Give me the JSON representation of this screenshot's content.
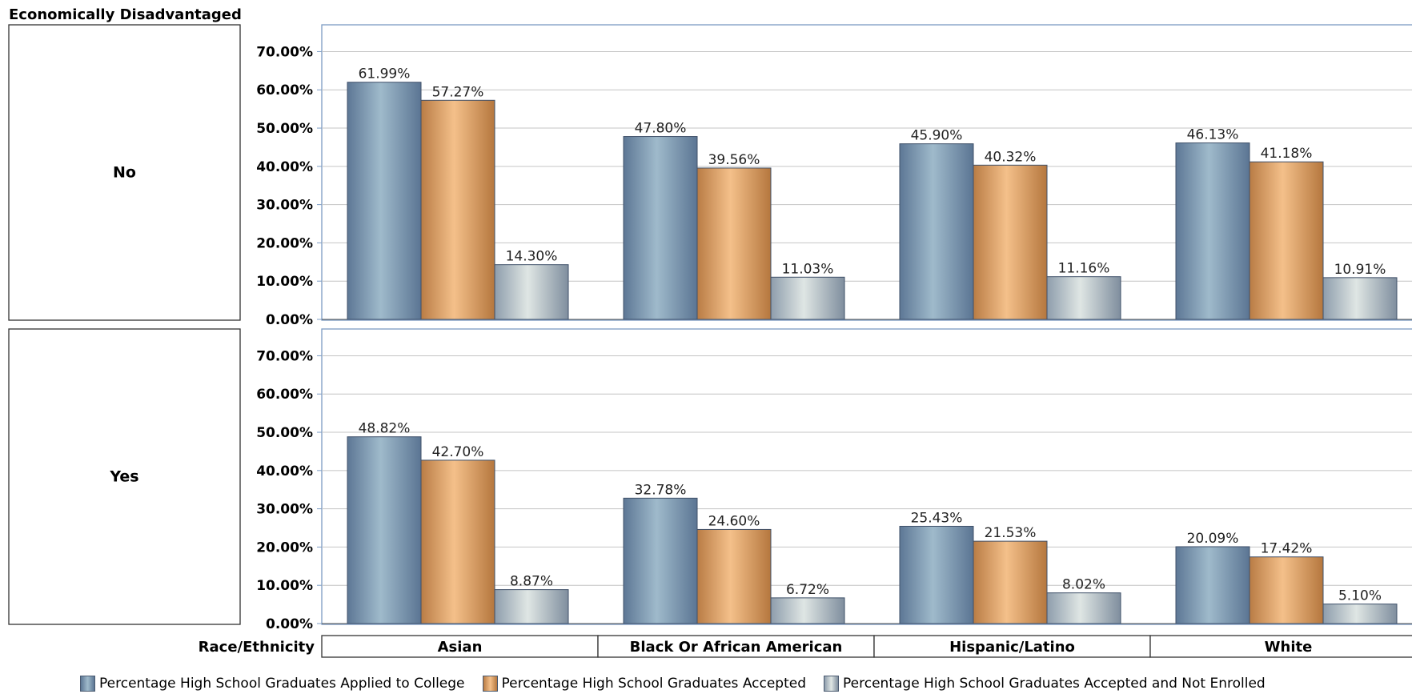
{
  "chart_data": {
    "type": "bar",
    "row_dimension_label": "Economically Disadvantaged",
    "x_dimension_label": "Race/Ethnicity",
    "categories": [
      "Asian",
      "Black Or African American",
      "Hispanic/Latino",
      "White"
    ],
    "y_ticks": [
      "0.00%",
      "10.00%",
      "20.00%",
      "30.00%",
      "40.00%",
      "50.00%",
      "60.00%",
      "70.00%"
    ],
    "ylim": [
      0,
      77
    ],
    "grid": true,
    "legend_position": "bottom",
    "series_names": [
      "Percentage High School Graduates Applied to College",
      "Percentage High School Graduates Accepted",
      "Percentage High School Graduates Accepted and Not Enrolled"
    ],
    "series_colors": [
      "#7a97b5",
      "#e3a46a",
      "#b7c2ca"
    ],
    "panels": [
      {
        "row_label": "No",
        "series": [
          {
            "name": "Percentage High School Graduates Applied to College",
            "values": [
              61.99,
              47.8,
              45.9,
              46.13
            ],
            "labels": [
              "61.99%",
              "47.80%",
              "45.90%",
              "46.13%"
            ]
          },
          {
            "name": "Percentage High School Graduates Accepted",
            "values": [
              57.27,
              39.56,
              40.32,
              41.18
            ],
            "labels": [
              "57.27%",
              "39.56%",
              "40.32%",
              "41.18%"
            ]
          },
          {
            "name": "Percentage High School Graduates Accepted and Not Enrolled",
            "values": [
              14.3,
              11.03,
              11.16,
              10.91
            ],
            "labels": [
              "14.30%",
              "11.03%",
              "11.16%",
              "10.91%"
            ]
          }
        ]
      },
      {
        "row_label": "Yes",
        "series": [
          {
            "name": "Percentage High School Graduates Applied to College",
            "values": [
              48.82,
              32.78,
              25.43,
              20.09
            ],
            "labels": [
              "48.82%",
              "32.78%",
              "25.43%",
              "20.09%"
            ]
          },
          {
            "name": "Percentage High School Graduates Accepted",
            "values": [
              42.7,
              24.6,
              21.53,
              17.42
            ],
            "labels": [
              "42.70%",
              "24.60%",
              "21.53%",
              "17.42%"
            ]
          },
          {
            "name": "Percentage High School Graduates Accepted and Not Enrolled",
            "values": [
              8.87,
              6.72,
              8.02,
              5.1
            ],
            "labels": [
              "8.87%",
              "6.72%",
              "8.02%",
              "5.10%"
            ]
          }
        ]
      }
    ]
  }
}
